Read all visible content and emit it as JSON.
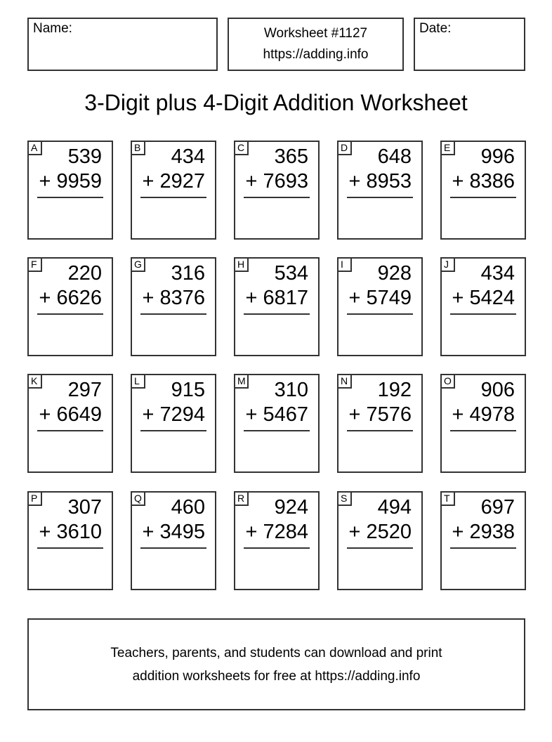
{
  "header": {
    "name_label": "Name:",
    "worksheet_number": "Worksheet #1127",
    "site_url": "https://adding.info",
    "date_label": "Date:"
  },
  "title": "3-Digit plus 4-Digit Addition Worksheet",
  "problems": [
    {
      "label": "A",
      "top": "539",
      "bottom": "+ 9959"
    },
    {
      "label": "B",
      "top": "434",
      "bottom": "+ 2927"
    },
    {
      "label": "C",
      "top": "365",
      "bottom": "+ 7693"
    },
    {
      "label": "D",
      "top": "648",
      "bottom": "+ 8953"
    },
    {
      "label": "E",
      "top": "996",
      "bottom": "+ 8386"
    },
    {
      "label": "F",
      "top": "220",
      "bottom": "+ 6626"
    },
    {
      "label": "G",
      "top": "316",
      "bottom": "+ 8376"
    },
    {
      "label": "H",
      "top": "534",
      "bottom": "+ 6817"
    },
    {
      "label": "I",
      "top": "928",
      "bottom": "+ 5749"
    },
    {
      "label": "J",
      "top": "434",
      "bottom": "+ 5424"
    },
    {
      "label": "K",
      "top": "297",
      "bottom": "+ 6649"
    },
    {
      "label": "L",
      "top": "915",
      "bottom": "+ 7294"
    },
    {
      "label": "M",
      "top": "310",
      "bottom": "+ 5467"
    },
    {
      "label": "N",
      "top": "192",
      "bottom": "+ 7576"
    },
    {
      "label": "O",
      "top": "906",
      "bottom": "+ 4978"
    },
    {
      "label": "P",
      "top": "307",
      "bottom": "+ 3610"
    },
    {
      "label": "Q",
      "top": "460",
      "bottom": "+ 3495"
    },
    {
      "label": "R",
      "top": "924",
      "bottom": "+ 7284"
    },
    {
      "label": "S",
      "top": "494",
      "bottom": "+ 2520"
    },
    {
      "label": "T",
      "top": "697",
      "bottom": "+ 2938"
    }
  ],
  "footer": {
    "line1": "Teachers, parents, and students can download and print",
    "line2": "addition worksheets for free at https://adding.info"
  }
}
